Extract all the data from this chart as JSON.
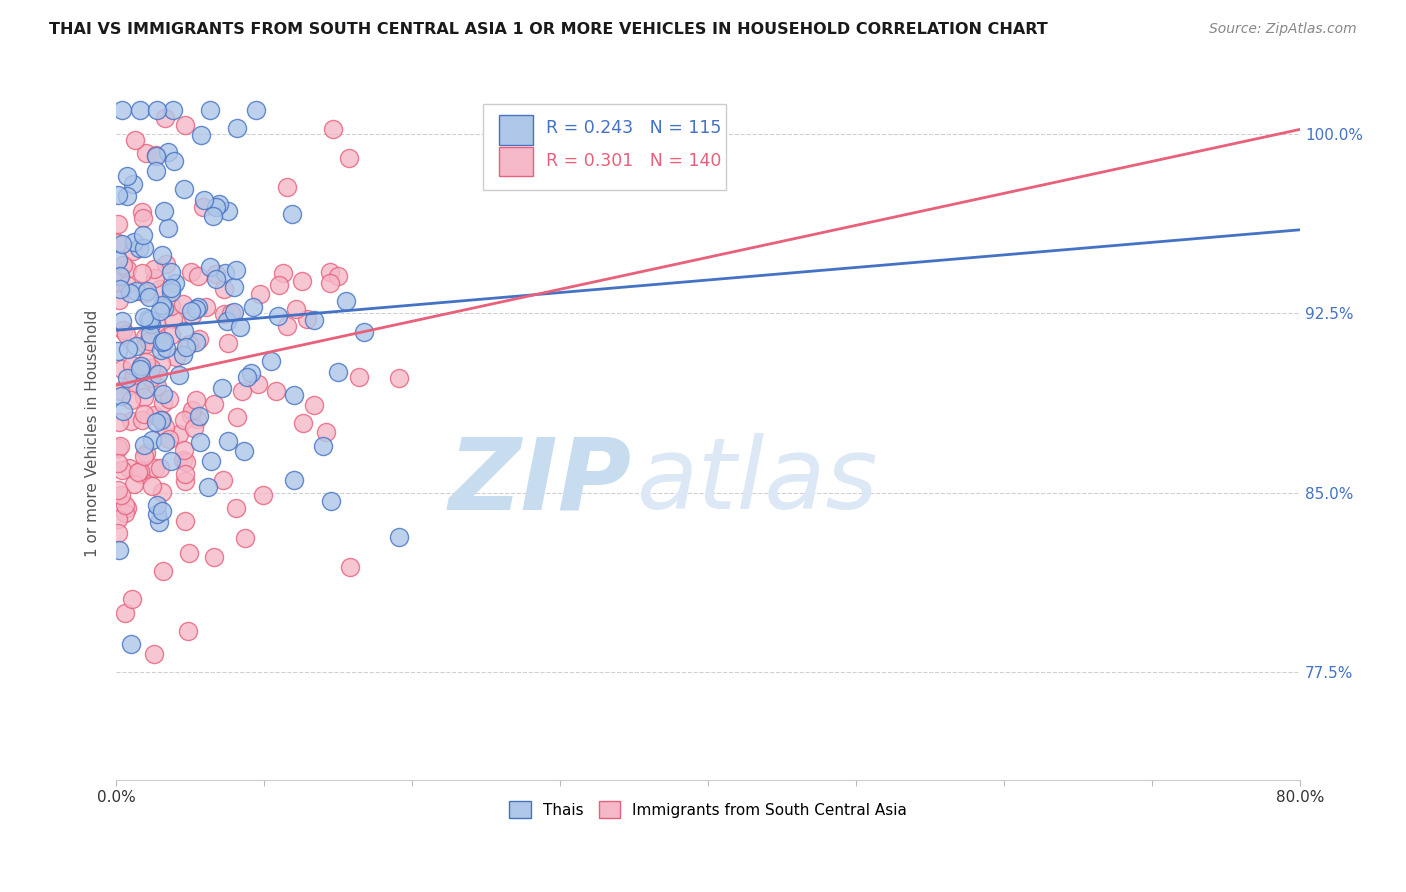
{
  "title": "THAI VS IMMIGRANTS FROM SOUTH CENTRAL ASIA 1 OR MORE VEHICLES IN HOUSEHOLD CORRELATION CHART",
  "source": "Source: ZipAtlas.com",
  "ylabel": "1 or more Vehicles in Household",
  "xlim": [
    0.0,
    80.0
  ],
  "ylim": [
    73.0,
    102.0
  ],
  "ytick_positions": [
    77.5,
    85.0,
    92.5,
    100.0
  ],
  "ytick_labels": [
    "77.5%",
    "85.0%",
    "92.5%",
    "100.0%"
  ],
  "r_thai": 0.243,
  "n_thai": 115,
  "r_immigrants": 0.301,
  "n_immigrants": 140,
  "thai_color": "#aec6e8",
  "immigrant_color": "#f5b8c8",
  "thai_line_color": "#4472c4",
  "immigrant_line_color": "#e8607a",
  "thai_line": [
    0.0,
    91.8,
    80.0,
    96.0
  ],
  "immigrant_line": [
    0.0,
    89.5,
    80.0,
    100.2
  ]
}
